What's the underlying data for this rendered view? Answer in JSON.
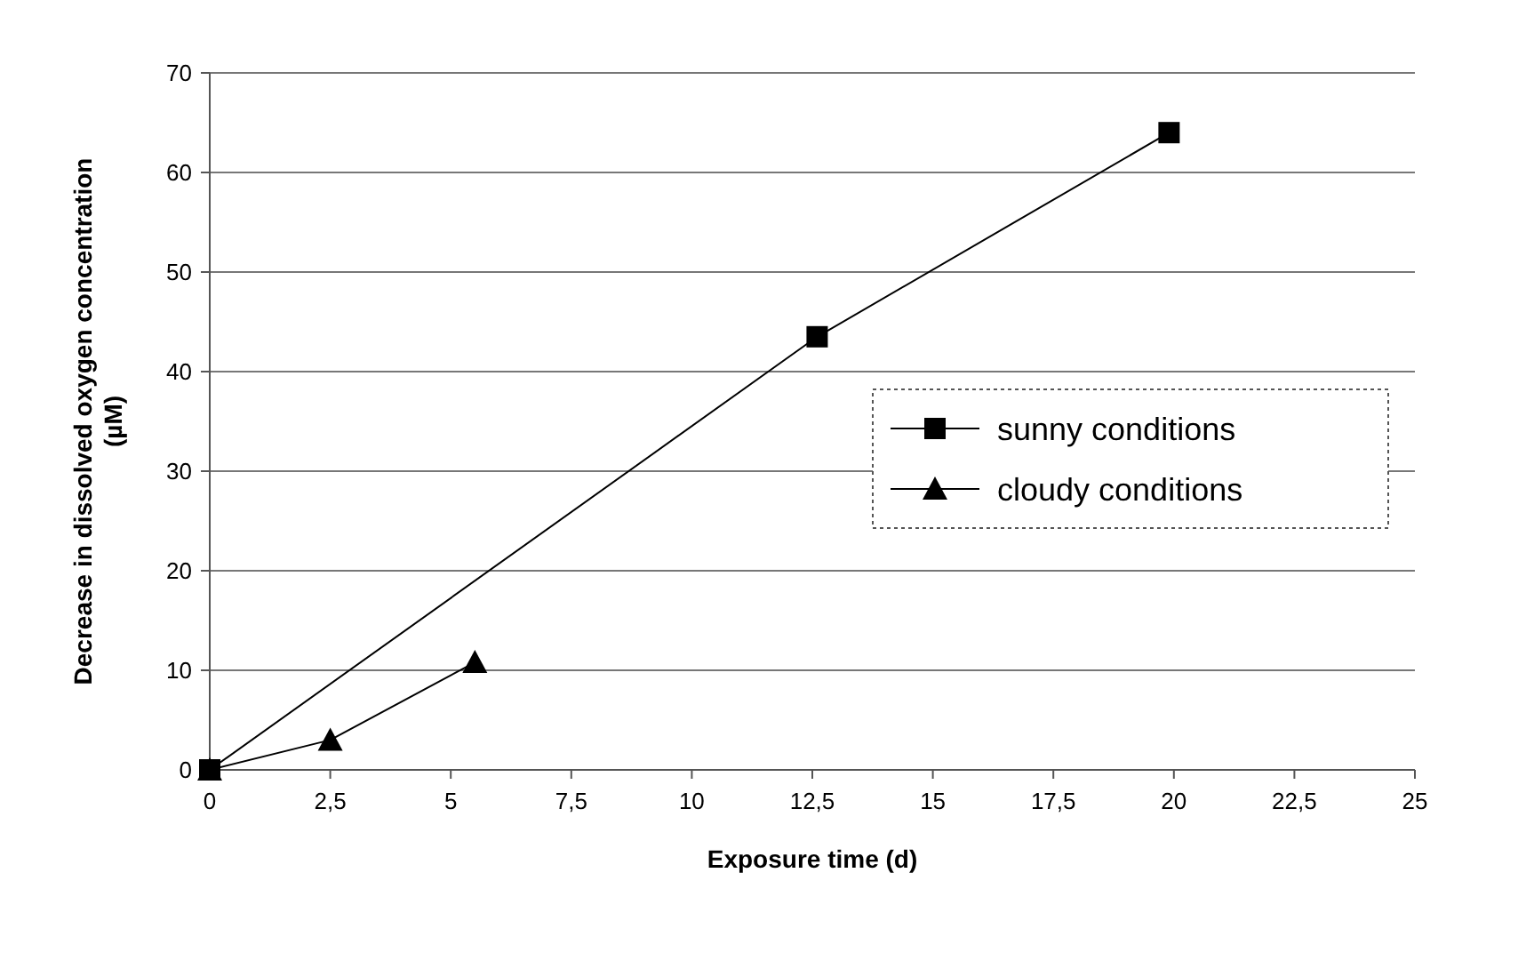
{
  "chart_data": {
    "type": "line",
    "xlabel": "Exposure time (d)",
    "ylabel": "Decrease in dissolved oxygen concentration (µM)",
    "xlim": [
      0,
      25
    ],
    "xticks": [
      0,
      {
        "value": 2.5,
        "label": "2,5"
      },
      5,
      {
        "value": 7.5,
        "label": "7,5"
      },
      10,
      {
        "value": 12.5,
        "label": "12,5"
      },
      15,
      {
        "value": 17.5,
        "label": "17,5"
      },
      20,
      {
        "value": 22.5,
        "label": "22,5"
      },
      25
    ],
    "ylim": [
      0,
      70
    ],
    "yticks": [
      0,
      10,
      20,
      30,
      40,
      50,
      60,
      70
    ],
    "grid": "y",
    "legend": "right",
    "line_style": "solid",
    "series": [
      {
        "name": "sunny conditions",
        "color": "#000000",
        "marker": "square",
        "x": [
          0,
          12.6,
          19.9
        ],
        "values": [
          0,
          43.5,
          64
        ]
      },
      {
        "name": "cloudy conditions",
        "color": "#000000",
        "marker": "triangle",
        "x": [
          0,
          2.5,
          5.5
        ],
        "values": [
          0,
          3,
          10.8
        ]
      }
    ]
  }
}
